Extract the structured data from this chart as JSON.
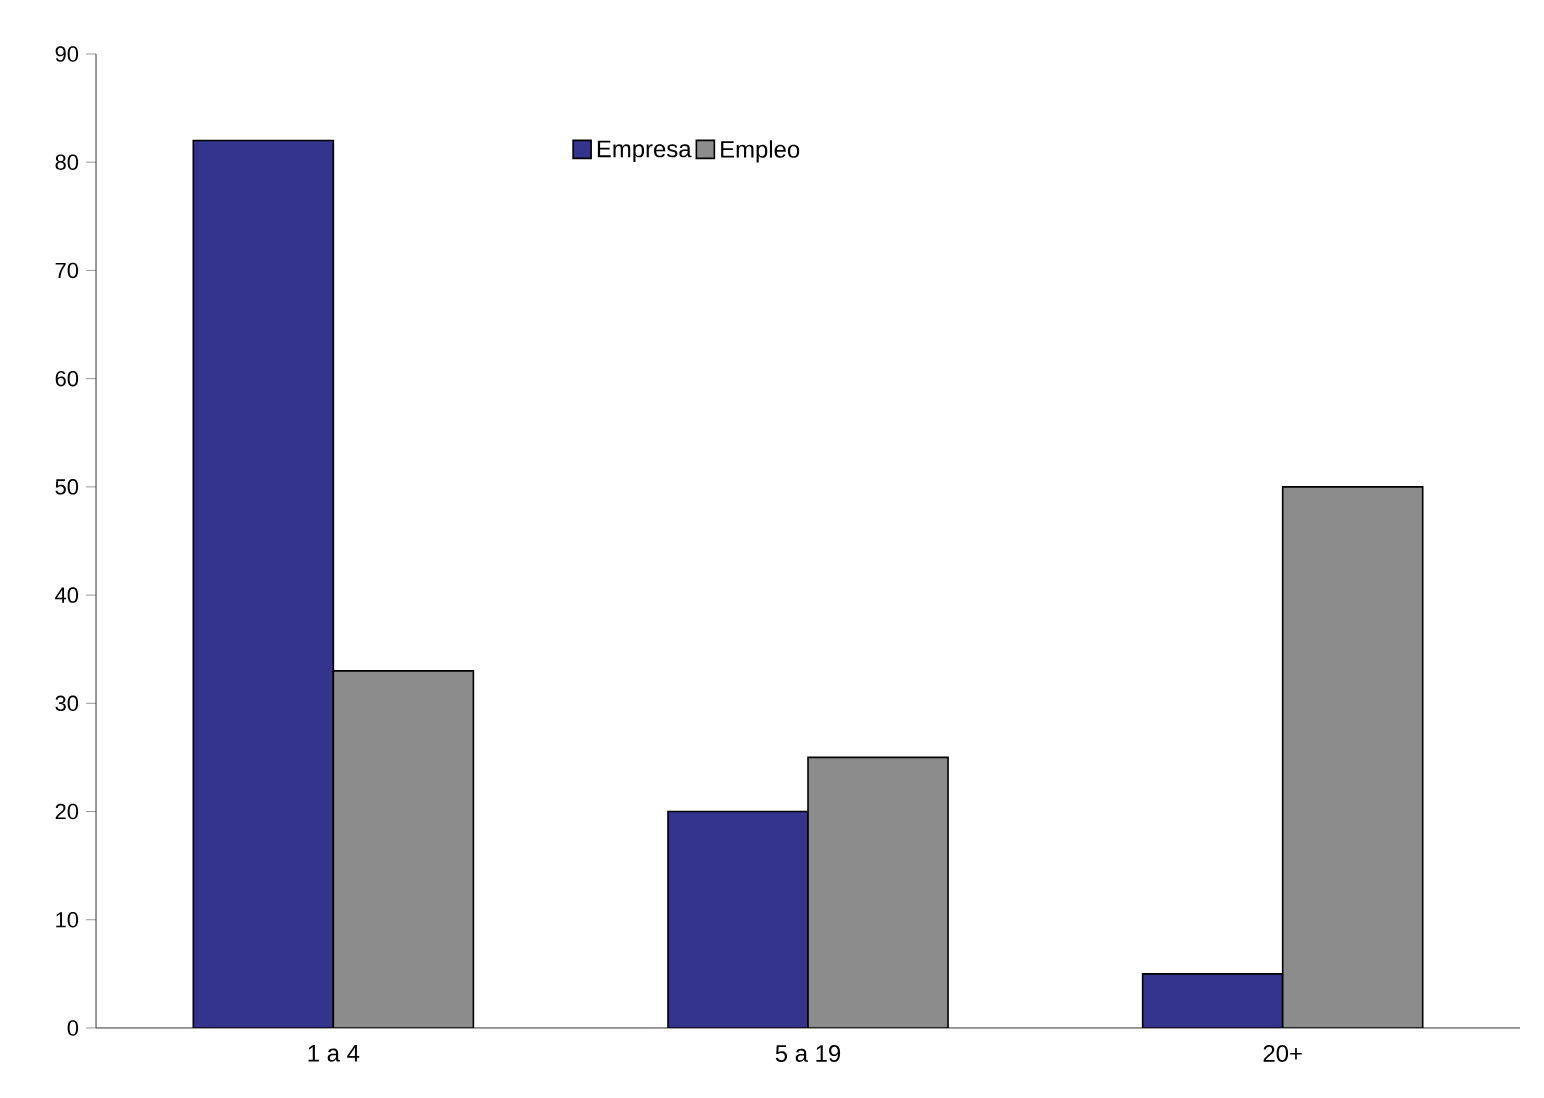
{
  "chart_data": {
    "type": "bar",
    "categories": [
      "1 a 4",
      "5 a 19",
      "20+"
    ],
    "series": [
      {
        "name": "Empresa",
        "color": "#34348f",
        "values": [
          82,
          20,
          5
        ]
      },
      {
        "name": "Empleo",
        "color": "#8c8c8c",
        "values": [
          33,
          25,
          50
        ]
      }
    ],
    "ylim": [
      0,
      90
    ],
    "yticks": [
      0,
      10,
      20,
      30,
      40,
      50,
      60,
      70,
      80,
      90
    ],
    "grid": false,
    "legend": "top"
  }
}
